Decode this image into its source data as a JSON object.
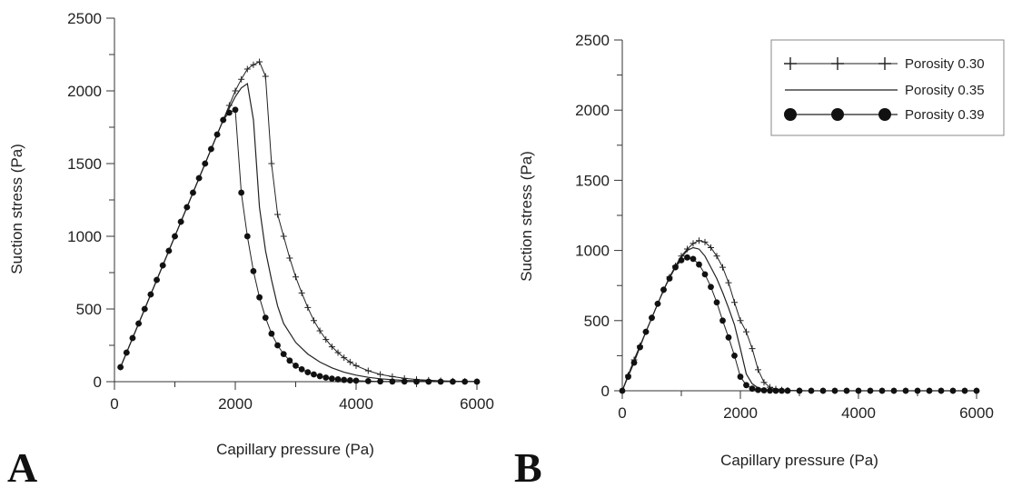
{
  "chart_data": [
    {
      "panel": "A",
      "type": "line",
      "xlabel": "Capillary pressure (Pa)",
      "ylabel": "Suction stress (Pa)",
      "xlim": [
        0,
        6000
      ],
      "ylim": [
        0,
        2500
      ],
      "xticks": [
        0,
        2000,
        4000,
        6000
      ],
      "yticks": [
        0,
        500,
        1000,
        1500,
        2000,
        2500
      ],
      "grid": false,
      "series": [
        {
          "name": "Porosity 0.30",
          "marker": "plus",
          "x": [
            100,
            200,
            300,
            400,
            500,
            600,
            700,
            800,
            900,
            1000,
            1100,
            1200,
            1300,
            1400,
            1500,
            1600,
            1700,
            1800,
            1900,
            2000,
            2100,
            2200,
            2300,
            2400,
            2500,
            2600,
            2700,
            2800,
            2900,
            3000,
            3100,
            3200,
            3300,
            3400,
            3500,
            3600,
            3700,
            3800,
            3900,
            4000,
            4200,
            4400,
            4600,
            4800,
            5000,
            5200,
            5400,
            5600,
            5800,
            6000
          ],
          "y": [
            100,
            200,
            300,
            400,
            500,
            600,
            700,
            800,
            900,
            1000,
            1100,
            1200,
            1300,
            1400,
            1500,
            1600,
            1700,
            1800,
            1900,
            2000,
            2080,
            2150,
            2180,
            2200,
            2100,
            1500,
            1150,
            1000,
            850,
            720,
            610,
            510,
            420,
            350,
            290,
            240,
            200,
            165,
            135,
            110,
            75,
            50,
            35,
            23,
            15,
            10,
            6,
            4,
            2,
            1
          ]
        },
        {
          "name": "Porosity 0.35",
          "marker": "none",
          "x": [
            100,
            500,
            1000,
            1500,
            1800,
            2000,
            2100,
            2200,
            2300,
            2400,
            2500,
            2600,
            2700,
            2800,
            3000,
            3200,
            3400,
            3600,
            3800,
            4000,
            4200,
            4400,
            4600,
            4800,
            5000,
            5500,
            6000
          ],
          "y": [
            100,
            500,
            1000,
            1500,
            1800,
            1960,
            2020,
            2050,
            1800,
            1200,
            900,
            700,
            520,
            400,
            270,
            190,
            135,
            95,
            65,
            45,
            30,
            20,
            14,
            9,
            6,
            2,
            1
          ]
        },
        {
          "name": "Porosity 0.39",
          "marker": "circle",
          "x": [
            100,
            200,
            300,
            400,
            500,
            600,
            700,
            800,
            900,
            1000,
            1100,
            1200,
            1300,
            1400,
            1500,
            1600,
            1700,
            1800,
            1900,
            2000,
            2100,
            2200,
            2300,
            2400,
            2500,
            2600,
            2700,
            2800,
            2900,
            3000,
            3100,
            3200,
            3300,
            3400,
            3500,
            3600,
            3700,
            3800,
            3900,
            4000,
            4200,
            4400,
            4600,
            4800,
            5000,
            5200,
            5400,
            5600,
            5800,
            6000
          ],
          "y": [
            100,
            200,
            300,
            400,
            500,
            600,
            700,
            800,
            900,
            1000,
            1100,
            1200,
            1300,
            1400,
            1500,
            1600,
            1700,
            1800,
            1850,
            1870,
            1300,
            1000,
            760,
            580,
            440,
            330,
            250,
            190,
            145,
            110,
            85,
            65,
            50,
            38,
            28,
            21,
            16,
            12,
            9,
            7,
            4,
            2,
            1,
            1,
            0,
            0,
            0,
            0,
            0,
            0
          ]
        }
      ]
    },
    {
      "panel": "B",
      "type": "line",
      "xlabel": "Capillary pressure (Pa)",
      "ylabel": "Suction stress (Pa)",
      "xlim": [
        0,
        6000
      ],
      "ylim": [
        0,
        2500
      ],
      "xticks": [
        0,
        2000,
        4000,
        6000
      ],
      "yticks": [
        0,
        500,
        1000,
        1500,
        2000,
        2500
      ],
      "grid": false,
      "legend": "top-right",
      "series": [
        {
          "name": "Porosity 0.30",
          "marker": "plus",
          "x": [
            0,
            100,
            200,
            300,
            400,
            500,
            600,
            700,
            800,
            900,
            1000,
            1100,
            1200,
            1300,
            1400,
            1500,
            1600,
            1700,
            1800,
            1900,
            2000,
            2100,
            2200,
            2300,
            2400,
            2500,
            2600,
            2700,
            2800,
            3000,
            3200,
            3400,
            3600,
            3800,
            4000,
            4200,
            4400,
            4600,
            4800,
            5000,
            5200,
            5400,
            5600,
            5800,
            6000
          ],
          "y": [
            0,
            110,
            220,
            320,
            420,
            520,
            620,
            720,
            810,
            890,
            960,
            1010,
            1050,
            1070,
            1060,
            1020,
            960,
            880,
            770,
            630,
            500,
            420,
            300,
            150,
            60,
            25,
            12,
            6,
            3,
            1,
            0,
            0,
            0,
            0,
            0,
            0,
            0,
            0,
            0,
            0,
            0,
            0,
            0,
            0,
            0
          ]
        },
        {
          "name": "Porosity 0.35",
          "marker": "none",
          "x": [
            0,
            200,
            400,
            600,
            800,
            1000,
            1100,
            1200,
            1300,
            1400,
            1500,
            1600,
            1700,
            1800,
            1900,
            2000,
            2100,
            2200,
            2300,
            2400,
            2600,
            2800,
            3000,
            4000,
            5000,
            6000
          ],
          "y": [
            0,
            220,
            420,
            620,
            810,
            950,
            1000,
            1020,
            1010,
            960,
            880,
            800,
            700,
            590,
            470,
            300,
            120,
            50,
            20,
            8,
            3,
            1,
            0,
            0,
            0,
            0
          ]
        },
        {
          "name": "Porosity 0.39",
          "marker": "circle",
          "x": [
            0,
            100,
            200,
            300,
            400,
            500,
            600,
            700,
            800,
            900,
            1000,
            1100,
            1200,
            1300,
            1400,
            1500,
            1600,
            1700,
            1800,
            1900,
            2000,
            2100,
            2200,
            2300,
            2400,
            2500,
            2600,
            2700,
            2800,
            3000,
            3200,
            3400,
            3600,
            3800,
            4000,
            4200,
            4400,
            4600,
            4800,
            5000,
            5200,
            5400,
            5600,
            5800,
            6000
          ],
          "y": [
            0,
            100,
            200,
            310,
            420,
            520,
            620,
            720,
            800,
            880,
            930,
            950,
            940,
            900,
            830,
            740,
            630,
            500,
            380,
            250,
            100,
            40,
            15,
            6,
            3,
            1,
            0,
            0,
            0,
            0,
            0,
            0,
            0,
            0,
            0,
            0,
            0,
            0,
            0,
            0,
            0,
            0,
            0,
            0,
            0
          ]
        }
      ]
    }
  ]
}
